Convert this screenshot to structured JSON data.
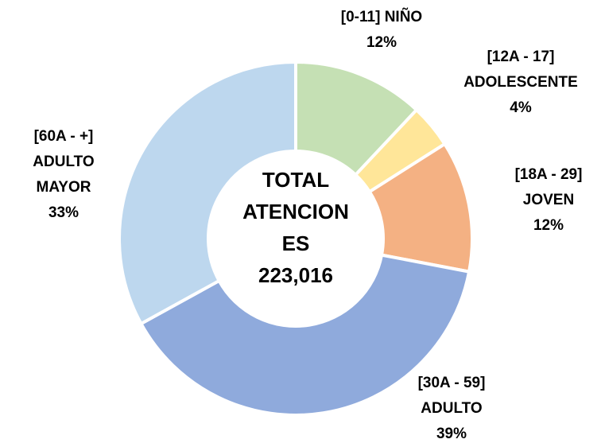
{
  "chart_data": {
    "type": "donut",
    "categories": [
      [
        "[0-11] NIÑO"
      ],
      [
        "[12A - 17]",
        "ADOLESCENTE"
      ],
      [
        "[18A - 29]",
        "JOVEN"
      ],
      [
        "[30A - 59]",
        "ADULTO"
      ],
      [
        "[60A - +]",
        "ADULTO",
        "MAYOR"
      ]
    ],
    "values": [
      12,
      4,
      12,
      39,
      33
    ],
    "value_labels": [
      "12%",
      "4%",
      "12%",
      "39%",
      "33%"
    ],
    "colors": [
      "#c5e0b4",
      "#ffe699",
      "#f4b183",
      "#8faadc",
      "#bdd7ee"
    ],
    "center_text": [
      "TOTAL",
      "ATENCION",
      "ES"
    ],
    "total": {
      "value": 223016,
      "label": "223,016"
    }
  }
}
